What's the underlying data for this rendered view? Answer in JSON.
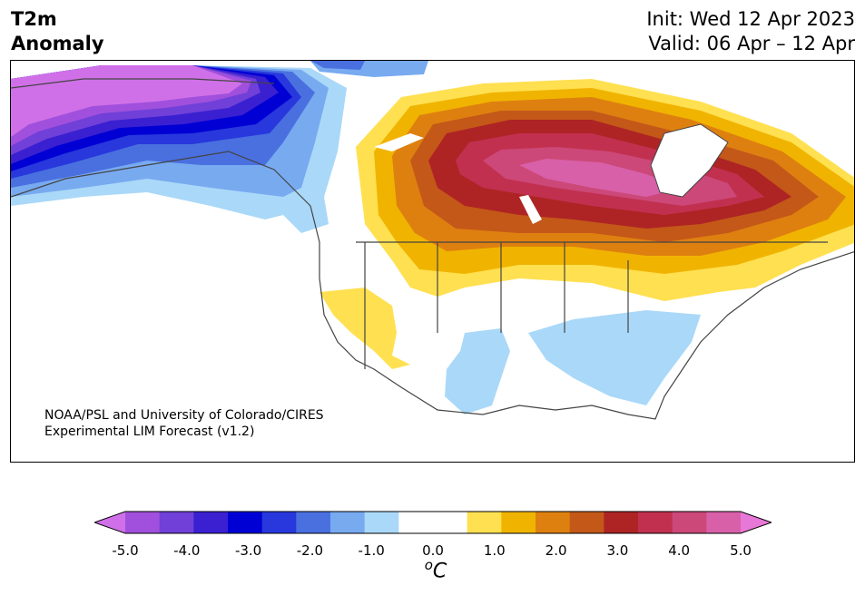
{
  "header": {
    "title_line1": "T2m",
    "title_line2": "Anomaly",
    "init": "Init: Wed 12 Apr 2023",
    "valid": "Valid: 06 Apr – 12 Apr"
  },
  "credit": {
    "line1": "NOAA/PSL and University of Colorado/CIRES",
    "line2": "Experimental LIM Forecast (v1.2)"
  },
  "colorbar": {
    "ticks": [
      "-5.0",
      "-4.0",
      "-3.0",
      "-2.0",
      "-1.0",
      "0.0",
      "1.0",
      "2.0",
      "3.0",
      "4.0",
      "5.0"
    ],
    "unit_prefix": "o",
    "unit": "C",
    "colors": [
      "#d070e8",
      "#a050dc",
      "#7040d8",
      "#3a20d0",
      "#0000d4",
      "#2838dc",
      "#4a70e0",
      "#78aaf0",
      "#aad8f8",
      "#ffffff",
      "#ffffff",
      "#ffe050",
      "#f0b400",
      "#de8010",
      "#c45818",
      "#ae2424",
      "#c23050",
      "#cc4878",
      "#d860a8",
      "#e878d8"
    ]
  },
  "map": {
    "projection": "Lambert conformal, North America",
    "colors": {
      "land_border": "#444444",
      "neg_light": "#aad8f8"
    }
  }
}
